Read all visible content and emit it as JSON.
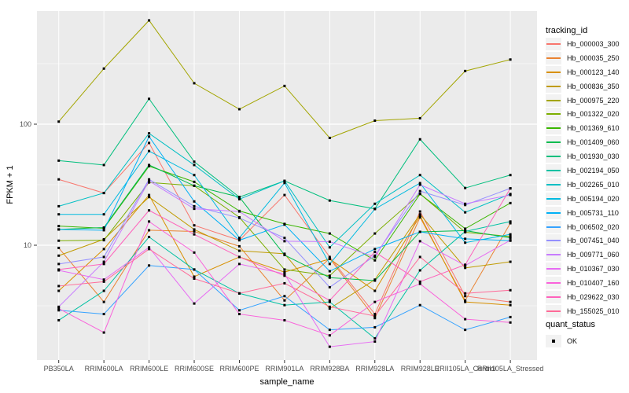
{
  "legend": {
    "tracking_title": "tracking_id",
    "quant_title": "quant_status",
    "quant_items": [
      {
        "label": "OK",
        "marker": "black-square"
      }
    ]
  },
  "style": {
    "panel_bg": "#EBEBEB",
    "grid_color": "#FFFFFF",
    "tick_label_color": "#4D4D4D",
    "axis_title_color": "#000000",
    "point_color": "#000000",
    "background": "#FFFFFF"
  },
  "chart_data": {
    "type": "line",
    "title": "",
    "xlabel": "sample_name",
    "ylabel": "FPKM + 1",
    "y_scale": "log10",
    "ylim": [
      1.2,
      900
    ],
    "grid": true,
    "legend_position": "right",
    "y_ticks": [
      {
        "value": 100,
        "label": "100"
      },
      {
        "value": 10,
        "label": "10"
      }
    ],
    "y_minor_grid": [
      3.162,
      31.623,
      316.228
    ],
    "point": {
      "shape": "square",
      "color": "#000000",
      "size": 3
    },
    "categories": [
      "PB350LA",
      "RRIM600LA",
      "RRIM600LE",
      "RRIM600SE",
      "RRIM600PE",
      "RRIM901LA",
      "RRIM928BA",
      "RRIM928LA",
      "RRIM928LE",
      "RRII105LA_Control",
      "RRII105LA_Stressed"
    ],
    "series": [
      {
        "name": "Hb_000003_300",
        "color": "#F8766D",
        "values": [
          35,
          27,
          70,
          14.6,
          11,
          26,
          8.0,
          2.7,
          19,
          3.8,
          3.4
        ]
      },
      {
        "name": "Hb_000035_250",
        "color": "#EA8331",
        "values": [
          9.5,
          3.4,
          13.3,
          13,
          9.8,
          3.5,
          7.8,
          2.5,
          17,
          3.5,
          15.2
        ]
      },
      {
        "name": "Hb_000123_140",
        "color": "#D89000",
        "values": [
          4.2,
          9.3,
          26,
          5.5,
          8.0,
          6.0,
          7.7,
          4.2,
          17.5,
          3.4,
          3.2
        ]
      },
      {
        "name": "Hb_000836_350",
        "color": "#C09B00",
        "values": [
          8.2,
          11.2,
          25,
          13.5,
          9.0,
          8.5,
          3.0,
          5.2,
          18,
          6.5,
          7.3
        ]
      },
      {
        "name": "Hb_000975_220",
        "color": "#A3A500",
        "values": [
          105,
          288,
          720,
          218,
          133,
          207,
          77,
          107,
          112,
          275,
          342
        ]
      },
      {
        "name": "Hb_001322_020",
        "color": "#7CAE00",
        "values": [
          10.9,
          11.0,
          33,
          31,
          17,
          6.3,
          5.6,
          12.5,
          26.6,
          12.8,
          11.8
        ]
      },
      {
        "name": "Hb_001369_610",
        "color": "#39B600",
        "values": [
          14.4,
          13.8,
          45,
          33.4,
          19.2,
          15,
          12.5,
          7.5,
          26.5,
          13.7,
          22.3
        ]
      },
      {
        "name": "Hb_001409_060",
        "color": "#00BB4E",
        "values": [
          13.5,
          14.0,
          46,
          31,
          25,
          8.3,
          5.4,
          5.1,
          12.9,
          13.2,
          11.5
        ]
      },
      {
        "name": "Hb_001930_030",
        "color": "#00BF7D",
        "values": [
          50,
          46,
          162,
          49,
          25,
          34,
          23.4,
          20,
          75,
          29.7,
          38
        ]
      },
      {
        "name": "Hb_002194_050",
        "color": "#00C1A3",
        "values": [
          2.4,
          4.2,
          11.7,
          6.3,
          4.0,
          3.2,
          3.4,
          1.7,
          6.2,
          13,
          15.7
        ]
      },
      {
        "name": "Hb_002265_010",
        "color": "#00BFC4",
        "values": [
          21,
          27,
          84,
          46,
          24,
          34,
          9.6,
          22,
          38,
          18.7,
          26.5
        ]
      },
      {
        "name": "Hb_005194_020",
        "color": "#00BAE0",
        "values": [
          18,
          18,
          60,
          38,
          11.5,
          32.7,
          7.0,
          19.9,
          32.6,
          10.5,
          12.3
        ]
      },
      {
        "name": "Hb_005731_110",
        "color": "#00B0F6",
        "values": [
          13.5,
          13.3,
          79,
          23,
          11,
          14.8,
          6.1,
          9.3,
          12.9,
          11.3,
          10.9
        ]
      },
      {
        "name": "Hb_006502_020",
        "color": "#35A2FF",
        "values": [
          2.9,
          2.7,
          6.8,
          6.3,
          2.9,
          3.8,
          2.0,
          2.1,
          3.2,
          2.0,
          2.55
        ]
      },
      {
        "name": "Hb_007451_040",
        "color": "#9590FF",
        "values": [
          7.0,
          8.0,
          35,
          21,
          16.8,
          11.5,
          4.5,
          8.2,
          28,
          21.5,
          29.5
        ]
      },
      {
        "name": "Hb_009771_060",
        "color": "#C77CFF",
        "values": [
          3.1,
          7.3,
          34,
          20,
          19,
          10.8,
          10.7,
          8.0,
          31.6,
          22,
          26
        ]
      },
      {
        "name": "Hb_010367_030",
        "color": "#E76BF3",
        "values": [
          6.2,
          5.2,
          9.6,
          3.3,
          7.0,
          5.8,
          1.45,
          1.6,
          10.8,
          6.8,
          11
        ]
      },
      {
        "name": "Hb_010407_160",
        "color": "#FA62DB",
        "values": [
          3.0,
          1.9,
          15.7,
          8.7,
          2.7,
          2.4,
          1.8,
          3.4,
          4.8,
          2.45,
          2.3
        ]
      },
      {
        "name": "Hb_029622_030",
        "color": "#FF62BC",
        "values": [
          6.3,
          7.0,
          19.4,
          12.3,
          8.0,
          5.6,
          3.5,
          8.8,
          5.0,
          6.9,
          29.5
        ]
      },
      {
        "name": "Hb_155025_010",
        "color": "#FF6A98",
        "values": [
          4.6,
          5.0,
          9.3,
          5.3,
          4.0,
          4.85,
          3.1,
          2.6,
          8.0,
          4.0,
          4.25
        ]
      }
    ]
  }
}
